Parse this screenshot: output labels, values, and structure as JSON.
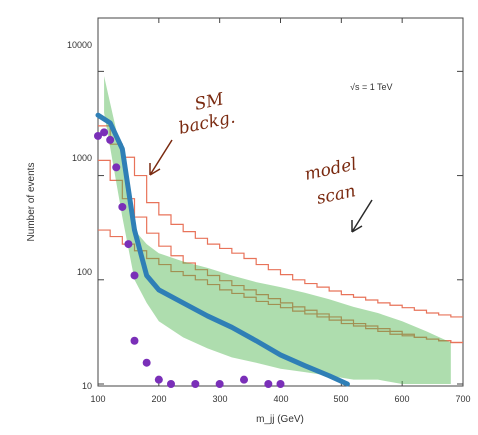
{
  "chart_data": {
    "type": "scatter",
    "title": "",
    "xlabel": "m_jj (GeV)",
    "ylabel": "Number of events",
    "xlim": [
      100,
      700
    ],
    "ylim": [
      10,
      20000
    ],
    "yscale": "log",
    "x_ticks": [
      "100",
      "200",
      "300",
      "400",
      "500",
      "600",
      "700"
    ],
    "y_ticks": [
      "10",
      "100",
      "1000",
      "10000"
    ],
    "annotations": {
      "energy": "√s = 1 TeV",
      "sm_note_line1": "SM",
      "sm_note_line2": "backg.",
      "model_note_line1": "model",
      "model_note_line2": "scan"
    },
    "series": [
      {
        "kind": "step",
        "color": "#e8735a",
        "x": [
          100,
          120,
          140,
          160,
          180,
          200,
          220,
          240,
          260,
          280,
          300,
          320,
          340,
          360,
          380,
          400,
          420,
          440,
          460,
          480,
          500,
          520,
          540,
          560,
          580,
          600,
          620,
          640,
          660,
          680,
          700
        ],
        "values": [
          3000,
          2000,
          1500,
          1000,
          550,
          420,
          340,
          290,
          250,
          220,
          200,
          180,
          160,
          140,
          125,
          112,
          100,
          92,
          85,
          78,
          72,
          68,
          64,
          60,
          57,
          54,
          51,
          48,
          46,
          44,
          42
        ]
      },
      {
        "kind": "step",
        "color": "#e8735a",
        "x": [
          100,
          120,
          140,
          160,
          180,
          200,
          220,
          240,
          260,
          280,
          300,
          320,
          340,
          360,
          380,
          400,
          420,
          440,
          460,
          480,
          500,
          520,
          540,
          560,
          580,
          600,
          620,
          640,
          660,
          680,
          700
        ],
        "values": [
          300,
          260,
          220,
          190,
          160,
          140,
          120,
          110,
          100,
          90,
          80,
          74,
          68,
          62,
          58,
          54,
          50,
          47,
          44,
          41,
          38,
          36,
          34,
          32,
          30,
          29,
          28,
          27,
          26,
          25,
          24
        ]
      },
      {
        "kind": "step",
        "color": "#e8735a",
        "x": [
          100,
          120,
          140,
          160,
          180,
          200,
          220,
          240,
          260,
          280,
          300,
          320,
          340,
          360,
          380,
          400,
          420,
          440,
          460,
          480,
          500,
          520,
          540,
          560,
          580,
          600,
          620,
          640,
          660,
          680,
          700
        ],
        "values": [
          1400,
          900,
          600,
          400,
          280,
          210,
          170,
          145,
          125,
          110,
          98,
          88,
          80,
          72,
          66,
          60,
          55,
          51,
          47,
          44,
          41,
          38,
          36,
          34,
          32,
          30,
          28,
          27,
          26,
          25,
          24
        ]
      },
      {
        "kind": "band",
        "color": "#4cb34c",
        "x": [
          110,
          140,
          160,
          180,
          200,
          240,
          280,
          320,
          360,
          400,
          440,
          480,
          520,
          560,
          600,
          640,
          680
        ],
        "upper": [
          9000,
          1500,
          300,
          220,
          180,
          150,
          130,
          110,
          95,
          85,
          75,
          65,
          55,
          48,
          40,
          32,
          25
        ],
        "lower": [
          4000,
          400,
          100,
          60,
          40,
          28,
          22,
          18,
          16,
          14,
          13,
          12,
          11,
          11,
          10,
          10,
          10
        ]
      },
      {
        "kind": "line",
        "color": "#2f7fb6",
        "x": [
          100,
          120,
          140,
          160,
          180,
          200,
          240,
          280,
          320,
          360,
          400,
          440,
          480,
          510
        ],
        "values": [
          3800,
          3200,
          1800,
          300,
          110,
          80,
          60,
          45,
          35,
          26,
          19,
          15,
          12,
          10
        ]
      },
      {
        "kind": "points",
        "color": "#7a2fb8",
        "x": [
          100,
          110,
          120,
          130,
          140,
          150,
          160
        ],
        "values": [
          2400,
          2600,
          2200,
          1200,
          500,
          220,
          110
        ]
      },
      {
        "kind": "points",
        "color": "#7a2fb8",
        "x": [
          160,
          180,
          200,
          220,
          260,
          300,
          340,
          380,
          400
        ],
        "values": [
          26,
          16,
          11,
          10,
          10,
          10,
          11,
          10,
          10
        ]
      }
    ]
  }
}
